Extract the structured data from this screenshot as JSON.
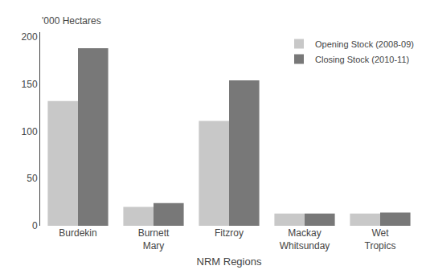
{
  "chart_data": {
    "type": "bar",
    "categories": [
      "Burdekin",
      "Burnett\nMary",
      "Fitzroy",
      "Mackay\nWhitsunday",
      "Wet\nTropics"
    ],
    "series": [
      {
        "name": "Opening Stock (2008-09)",
        "color": "#c8c8c8",
        "values": [
          132,
          20,
          111,
          13,
          13
        ]
      },
      {
        "name": "Closing Stock (2010-11)",
        "color": "#787878",
        "values": [
          188,
          24,
          154,
          13,
          14
        ]
      }
    ],
    "xlabel": "NRM Regions",
    "ylabel": "'000 Hectares",
    "ylim": [
      0,
      205
    ],
    "yticks": [
      0,
      50,
      100,
      150,
      200
    ],
    "grid": false,
    "legend": "upper right"
  }
}
